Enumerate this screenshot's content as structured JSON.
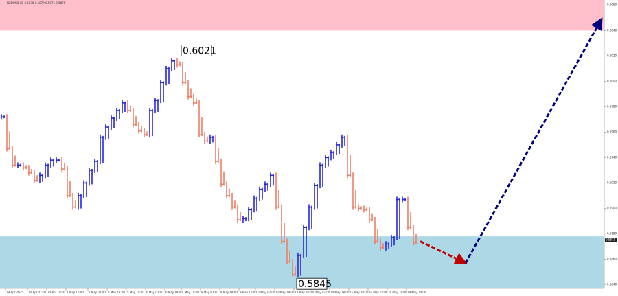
{
  "chart_data": {
    "type": "bar",
    "title": "NZDUSD,H1  0.5878 0.5879 0.5875 0.5875",
    "values": [
      0.5972,
      0.5947,
      0.5934,
      0.5934,
      0.5932,
      0.5928,
      0.5922,
      0.5926,
      0.5934,
      0.5938,
      0.5938,
      0.5931,
      0.591,
      0.5901,
      0.591,
      0.592,
      0.593,
      0.5937,
      0.5956,
      0.5964,
      0.5971,
      0.5977,
      0.5983,
      0.5977,
      0.5966,
      0.5961,
      0.5958,
      0.5977,
      0.5985,
      0.5999,
      0.601,
      0.6016,
      0.6013,
      0.5999,
      0.5988,
      0.5983,
      0.5958,
      0.5953,
      0.5956,
      0.5937,
      0.5919,
      0.591,
      0.5901,
      0.5891,
      0.5892,
      0.5899,
      0.5908,
      0.5915,
      0.5919,
      0.5926,
      0.5901,
      0.5874,
      0.5858,
      0.5848,
      0.5863,
      0.5885,
      0.5901,
      0.5918,
      0.5934,
      0.594,
      0.5944,
      0.595,
      0.5956,
      0.5926,
      0.5901,
      0.59,
      0.5899,
      0.5891,
      0.5874,
      0.5869,
      0.5872,
      0.5877,
      0.5907,
      0.5907,
      0.5885,
      0.5873
    ],
    "up_color": "#2727e6",
    "down_color": "#f07f66",
    "zones": [
      {
        "from": 0.604,
        "to": 0.6064,
        "color": "#ffc0cb"
      },
      {
        "from": 0.5837,
        "to": 0.5878,
        "color": "#add8e6"
      }
    ],
    "annotations": [
      {
        "text": "0.6021",
        "x": 32,
        "y": 0.6021
      },
      {
        "text": "0.5845",
        "x": 53,
        "y": 0.5845
      }
    ],
    "forecast": [
      {
        "color": "#c00000",
        "x": [
          76,
          84.25
        ],
        "y": [
          0.5874,
          0.5857
        ]
      },
      {
        "color": "#00007f",
        "x": [
          84.25,
          109
        ],
        "y": [
          0.5857,
          0.6049
        ]
      }
    ],
    "current_price": {
      "value": 0.5875,
      "label": "0.5875"
    },
    "xlim": [
      -0.5,
      109.5
    ],
    "ylim": [
      0.5837,
      0.6064
    ],
    "yticks": [
      {
        "value": 0.584,
        "label": "0.5840"
      },
      {
        "value": 0.586,
        "label": "0.5860"
      },
      {
        "value": 0.588,
        "label": "0.5880"
      },
      {
        "value": 0.59,
        "label": "0.5900"
      },
      {
        "value": 0.592,
        "label": "0.5920"
      },
      {
        "value": 0.594,
        "label": "0.5940"
      },
      {
        "value": 0.596,
        "label": "0.5960"
      },
      {
        "value": 0.598,
        "label": "0.5980"
      },
      {
        "value": 0.6,
        "label": "0.6000"
      },
      {
        "value": 0.602,
        "label": "0.6020"
      },
      {
        "value": 0.604,
        "label": "0.6040"
      },
      {
        "value": 0.606,
        "label": "0.6060"
      }
    ],
    "xticks": [
      {
        "value": 0.5,
        "label": "29 Apr 2025"
      },
      {
        "value": 4.5,
        "label": "30 Apr 02:00"
      },
      {
        "value": 8,
        "label": "30 Apr 18:00"
      },
      {
        "value": 11.5,
        "label": "1 May 10:00"
      },
      {
        "value": 15.5,
        "label": "2 May 02:00"
      },
      {
        "value": 19,
        "label": "2 May 18:00"
      },
      {
        "value": 22.5,
        "label": "5 May 10:00"
      },
      {
        "value": 26,
        "label": "6 May 02:00"
      },
      {
        "value": 29.5,
        "label": "6 May 18:00"
      },
      {
        "value": 32.5,
        "label": "7 May 10:00"
      },
      {
        "value": 36,
        "label": "8 May 02:00"
      },
      {
        "value": 39.5,
        "label": "8 May 18:00"
      },
      {
        "value": 43,
        "label": "9 May 10:00"
      },
      {
        "value": 46,
        "label": "12 May 02:00"
      },
      {
        "value": 49.5,
        "label": "12 May 18:00"
      },
      {
        "value": 53,
        "label": "13 May 10:00"
      },
      {
        "value": 56,
        "label": "14 May 02:00"
      },
      {
        "value": 59.5,
        "label": "14 May 18:00"
      },
      {
        "value": 63,
        "label": "15 May 10:00"
      },
      {
        "value": 66.5,
        "label": "16 May 02:00"
      },
      {
        "value": 70,
        "label": "16 May 18:00"
      },
      {
        "value": 73.5,
        "label": "19 May 10:00"
      }
    ]
  }
}
